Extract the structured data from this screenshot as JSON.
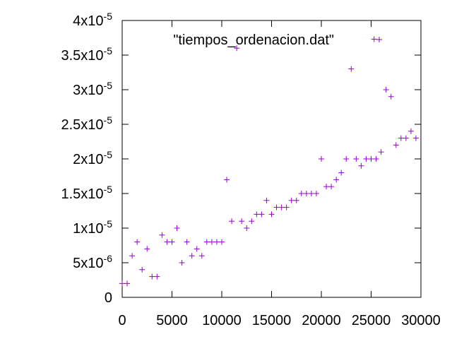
{
  "chart_data": {
    "type": "scatter",
    "title": "",
    "xlabel": "",
    "ylabel": "",
    "xlim": [
      0,
      30000
    ],
    "ylim": [
      0,
      4e-05
    ],
    "grid": false,
    "legend_position": "top-right",
    "colors": {
      "series": "#9400d3",
      "axes": "#000000"
    },
    "x_ticks": [
      {
        "value": 0,
        "label": "0"
      },
      {
        "value": 5000,
        "label": "5000"
      },
      {
        "value": 10000,
        "label": "10000"
      },
      {
        "value": 15000,
        "label": "15000"
      },
      {
        "value": 20000,
        "label": "20000"
      },
      {
        "value": 25000,
        "label": "25000"
      },
      {
        "value": 30000,
        "label": "30000"
      }
    ],
    "y_ticks": [
      {
        "value": 0,
        "label": "0"
      },
      {
        "value": 5e-06,
        "label": "5x10-6",
        "mantissa": "5x10",
        "exponent": "-6"
      },
      {
        "value": 1e-05,
        "label": "1x10-5",
        "mantissa": "1x10",
        "exponent": "-5"
      },
      {
        "value": 1.5e-05,
        "label": "1.5x10-5",
        "mantissa": "1.5x10",
        "exponent": "-5"
      },
      {
        "value": 2e-05,
        "label": "2x10-5",
        "mantissa": "2x10",
        "exponent": "-5"
      },
      {
        "value": 2.5e-05,
        "label": "2.5x10-5",
        "mantissa": "2.5x10",
        "exponent": "-5"
      },
      {
        "value": 3e-05,
        "label": "3x10-5",
        "mantissa": "3x10",
        "exponent": "-5"
      },
      {
        "value": 3.5e-05,
        "label": "3.5x10-5",
        "mantissa": "3.5x10",
        "exponent": "-5"
      },
      {
        "value": 4e-05,
        "label": "4x10-5",
        "mantissa": "4x10",
        "exponent": "-5"
      }
    ],
    "series": [
      {
        "name": "\"tiempos_ordenacion.dat\"",
        "marker": "plus",
        "points": [
          [
            0,
            2e-06
          ],
          [
            500,
            2e-06
          ],
          [
            1000,
            6e-06
          ],
          [
            1500,
            8e-06
          ],
          [
            2000,
            4e-06
          ],
          [
            2500,
            7e-06
          ],
          [
            3000,
            3e-06
          ],
          [
            3500,
            3e-06
          ],
          [
            4000,
            9e-06
          ],
          [
            4500,
            8e-06
          ],
          [
            5000,
            8e-06
          ],
          [
            5500,
            1e-05
          ],
          [
            6000,
            5e-06
          ],
          [
            6500,
            8e-06
          ],
          [
            7000,
            6e-06
          ],
          [
            7500,
            7e-06
          ],
          [
            8000,
            6e-06
          ],
          [
            8500,
            8e-06
          ],
          [
            9000,
            8e-06
          ],
          [
            9500,
            8e-06
          ],
          [
            10000,
            8e-06
          ],
          [
            10500,
            1.7e-05
          ],
          [
            11000,
            1.1e-05
          ],
          [
            11500,
            3.6e-05
          ],
          [
            12000,
            1.1e-05
          ],
          [
            12500,
            1e-05
          ],
          [
            13000,
            1.1e-05
          ],
          [
            13500,
            1.2e-05
          ],
          [
            14000,
            1.2e-05
          ],
          [
            14500,
            1.4e-05
          ],
          [
            15000,
            1.2e-05
          ],
          [
            15500,
            1.3e-05
          ],
          [
            16000,
            1.3e-05
          ],
          [
            16500,
            1.3e-05
          ],
          [
            17000,
            1.4e-05
          ],
          [
            17500,
            1.4e-05
          ],
          [
            18000,
            1.5e-05
          ],
          [
            18500,
            1.5e-05
          ],
          [
            19000,
            1.5e-05
          ],
          [
            19500,
            1.5e-05
          ],
          [
            20000,
            2e-05
          ],
          [
            20500,
            1.6e-05
          ],
          [
            21000,
            1.6e-05
          ],
          [
            21500,
            1.7e-05
          ],
          [
            22000,
            1.8e-05
          ],
          [
            22500,
            2e-05
          ],
          [
            23000,
            3.3e-05
          ],
          [
            23500,
            2e-05
          ],
          [
            24000,
            1.9e-05
          ],
          [
            24500,
            2e-05
          ],
          [
            25000,
            2e-05
          ],
          [
            25300,
            3.73e-05
          ],
          [
            25500,
            2e-05
          ],
          [
            26000,
            2.1e-05
          ],
          [
            26500,
            3e-05
          ],
          [
            27000,
            2.9e-05
          ],
          [
            27500,
            2.2e-05
          ],
          [
            28000,
            2.3e-05
          ],
          [
            28500,
            2.3e-05
          ],
          [
            29000,
            2.4e-05
          ],
          [
            29500,
            2.3e-05
          ]
        ]
      }
    ]
  }
}
